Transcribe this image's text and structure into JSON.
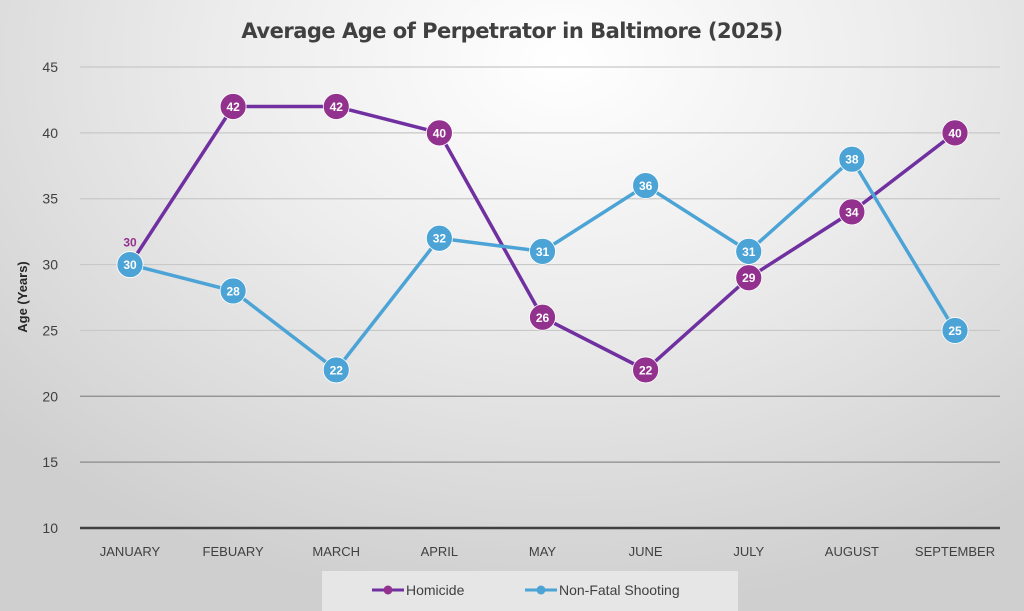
{
  "chart_data": {
    "type": "line",
    "title": "Average Age of Perpetrator in Baltimore (2025)",
    "xlabel": "",
    "ylabel": "Age (Years)",
    "ylim": [
      10,
      45
    ],
    "yticks": [
      10,
      15,
      20,
      25,
      30,
      35,
      40,
      45
    ],
    "grid": true,
    "legend_position": "bottom",
    "categories": [
      "JANUARY",
      "FEBUARY",
      "MARCH",
      "APRIL",
      "MAY",
      "JUNE",
      "JULY",
      "AUGUST",
      "SEPTEMBER"
    ],
    "series": [
      {
        "name": "Homicide",
        "values": [
          30,
          42,
          42,
          40,
          26,
          22,
          29,
          34,
          40
        ],
        "line_color": "#7030a0",
        "marker_color": "#93328e"
      },
      {
        "name": "Non-Fatal Shooting",
        "values": [
          30,
          28,
          22,
          32,
          31,
          36,
          31,
          38,
          25
        ],
        "line_color": "#4ba3d6",
        "marker_color": "#4ba3d6"
      }
    ]
  }
}
